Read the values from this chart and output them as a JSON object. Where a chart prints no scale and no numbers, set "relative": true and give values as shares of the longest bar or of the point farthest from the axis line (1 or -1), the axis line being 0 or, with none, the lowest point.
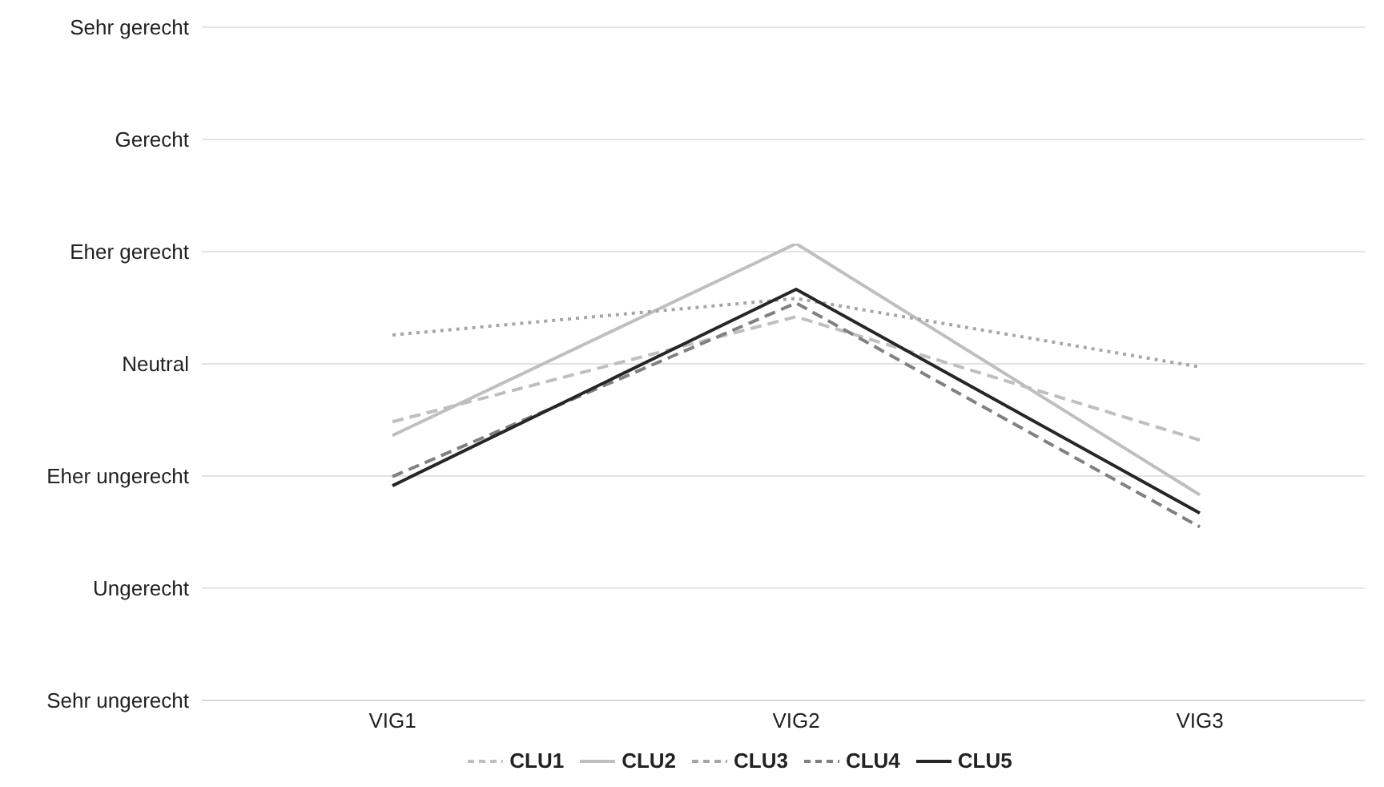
{
  "chart_data": {
    "type": "line",
    "relative": true,
    "categories": [
      "VIG1",
      "VIG2",
      "VIG3"
    ],
    "series": [
      {
        "name": "CLU1",
        "color": "#bfbfbf",
        "line_style": "dashed",
        "values": [
          0.61,
          0.84,
          0.57
        ]
      },
      {
        "name": "CLU2",
        "color": "#bfbfbf",
        "line_style": "solid",
        "values": [
          0.58,
          1,
          0.45
        ]
      },
      {
        "name": "CLU3",
        "color": "#a6a6a6",
        "line_style": "dotted",
        "values": [
          0.8,
          0.88,
          0.73
        ]
      },
      {
        "name": "CLU4",
        "color": "#808080",
        "line_style": "dashed",
        "values": [
          0.49,
          0.87,
          0.38
        ]
      },
      {
        "name": "CLU5",
        "color": "#262626",
        "line_style": "solid",
        "values": [
          0.47,
          0.9,
          0.41
        ]
      }
    ],
    "annotations": [
      "Sehr gerecht",
      "Gerecht",
      "Eher gerecht",
      "Neutral",
      "Eher ungerecht",
      "Ungerecht",
      "Sehr ungerecht"
    ],
    "grid": true,
    "legend": "bottom",
    "marker": "none"
  }
}
